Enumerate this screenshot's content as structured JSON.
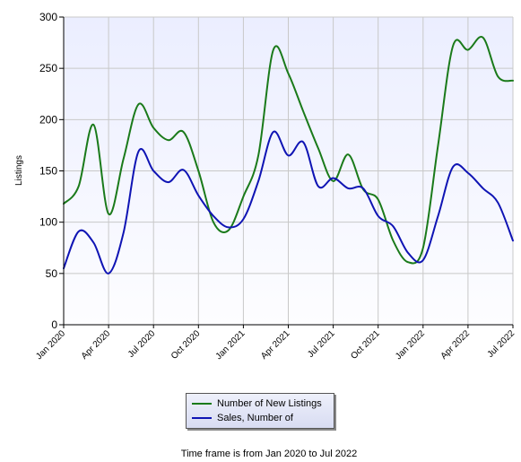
{
  "chart_data": {
    "type": "line",
    "ylabel": "Listings",
    "xlabel": "",
    "ylim": [
      0,
      300
    ],
    "y_ticks": [
      "0",
      "50",
      "100",
      "150",
      "200",
      "250",
      "300"
    ],
    "x_tick_labels": [
      "Jan 2020",
      "Apr 2020",
      "Jul 2020",
      "Oct 2020",
      "Jan 2021",
      "Apr 2021",
      "Jul 2021",
      "Oct 2021",
      "Jan 2022",
      "Apr 2022",
      "Jul 2022"
    ],
    "x": [
      "Jan 2020",
      "Feb 2020",
      "Mar 2020",
      "Apr 2020",
      "May 2020",
      "Jun 2020",
      "Jul 2020",
      "Aug 2020",
      "Sep 2020",
      "Oct 2020",
      "Nov 2020",
      "Dec 2020",
      "Jan 2021",
      "Feb 2021",
      "Mar 2021",
      "Apr 2021",
      "May 2021",
      "Jun 2021",
      "Jul 2021",
      "Aug 2021",
      "Sep 2021",
      "Oct 2021",
      "Nov 2021",
      "Dec 2021",
      "Jan 2022",
      "Feb 2022",
      "Mar 2022",
      "Apr 2022",
      "May 2022",
      "Jun 2022",
      "Jul 2022"
    ],
    "grid": true,
    "legend_placement": "bottom-center",
    "series": [
      {
        "name": "Number of New Listings",
        "color": "#1a7a1a",
        "values": [
          118,
          135,
          195,
          108,
          162,
          215,
          192,
          180,
          188,
          150,
          100,
          92,
          125,
          165,
          268,
          245,
          208,
          172,
          140,
          166,
          132,
          122,
          82,
          61,
          75,
          175,
          272,
          268,
          280,
          242,
          238
        ]
      },
      {
        "name": "Sales, Number of",
        "color": "#0f14b4",
        "values": [
          55,
          91,
          80,
          50,
          90,
          169,
          150,
          139,
          151,
          126,
          106,
          95,
          103,
          140,
          188,
          165,
          178,
          135,
          143,
          133,
          133,
          106,
          96,
          70,
          63,
          106,
          154,
          148,
          133,
          119,
          82
        ]
      }
    ]
  },
  "footer": {
    "timeframe_text": "Time frame is from Jan 2020 to Jul 2022"
  }
}
